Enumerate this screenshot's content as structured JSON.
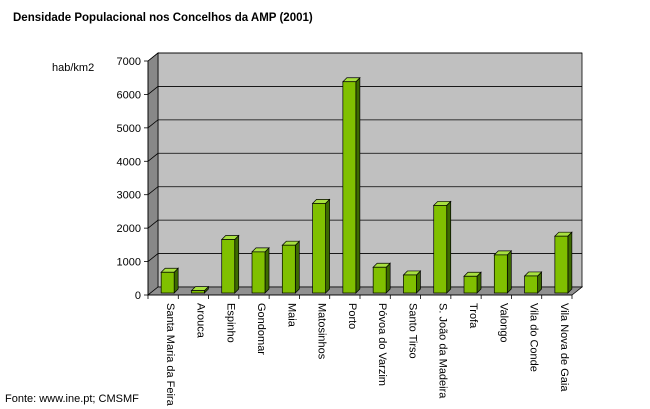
{
  "chart_data": {
    "type": "bar",
    "title": "Densidade Populacional nos Concelhos da AMP (2001)",
    "ylabel": "hab/km2",
    "xlabel": "",
    "ylim": [
      0,
      7000
    ],
    "yticks": [
      0,
      1000,
      2000,
      3000,
      4000,
      5000,
      6000,
      7000
    ],
    "grid": true,
    "categories": [
      "Santa Maria da Feira",
      "Arouca",
      "Espinho",
      "Gondomar",
      "Maia",
      "Matosinhos",
      "Porto",
      "Póvoa do Varzim",
      "Santo Tirso",
      "S. João da Madeira",
      "Trofa",
      "Valongo",
      "Vila do Conde",
      "Vila Nova de Gaia"
    ],
    "values": [
      620,
      70,
      1600,
      1230,
      1430,
      2680,
      6320,
      770,
      540,
      2620,
      500,
      1140,
      510,
      1700
    ],
    "colors": {
      "bar_front": "#80c000",
      "bar_side": "#3d6b00",
      "bar_top": "#a8e040",
      "plot_back": "#c0c0c0",
      "plot_floor": "#909090",
      "plot_wall": "#888888"
    }
  },
  "footer": {
    "source": "Fonte: www.ine.pt; CMSMF"
  }
}
